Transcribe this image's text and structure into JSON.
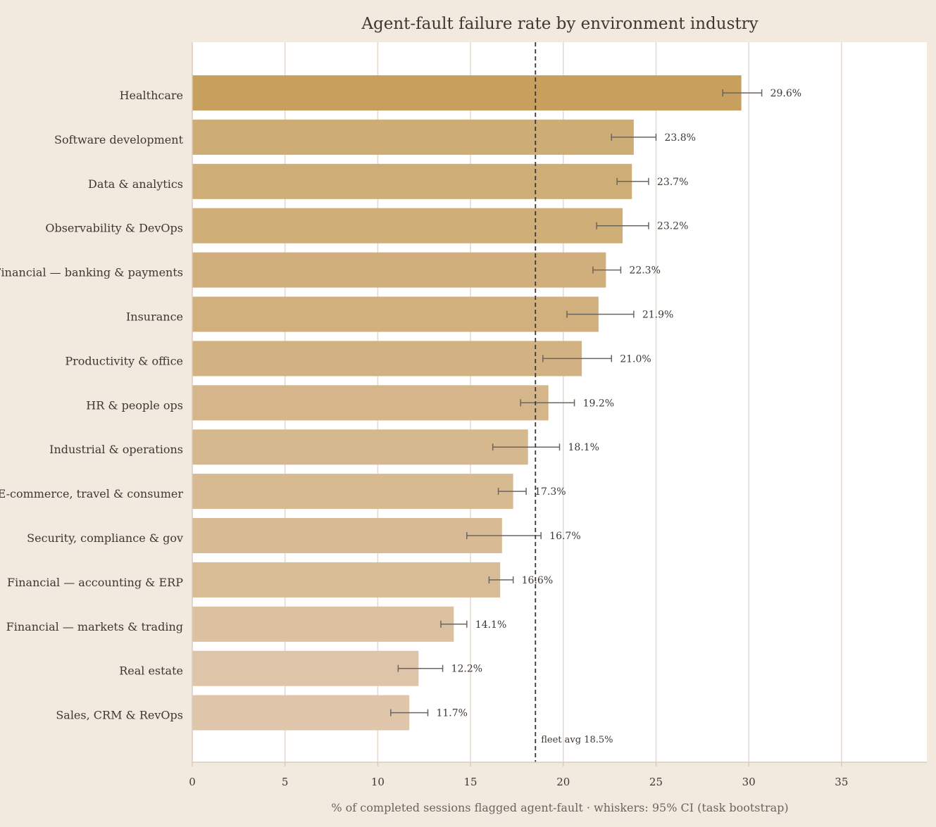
{
  "chart_data": {
    "type": "bar",
    "orientation": "horizontal",
    "title": "Agent-fault failure rate by environment industry",
    "xlabel": "% of completed sessions flagged agent-fault · whiskers: 95% CI (task bootstrap)",
    "ylabel": "",
    "xlim": [
      0,
      39.6
    ],
    "xticks": [
      0,
      5,
      10,
      15,
      20,
      25,
      30,
      35
    ],
    "grid": "vertical",
    "categories": [
      "Healthcare",
      "Software development",
      "Data & analytics",
      "Observability & DevOps",
      "Financial — banking & payments",
      "Insurance",
      "Productivity & office",
      "HR & people ops",
      "Industrial & operations",
      "E-commerce, travel & consumer",
      "Security, compliance & gov",
      "Financial — accounting & ERP",
      "Financial — markets & trading",
      "Real estate",
      "Sales, CRM & RevOps"
    ],
    "values": [
      29.6,
      23.8,
      23.7,
      23.2,
      22.3,
      21.9,
      21.0,
      19.2,
      18.1,
      17.3,
      16.7,
      16.6,
      14.1,
      12.2,
      11.7
    ],
    "ci_low": [
      28.6,
      22.6,
      22.9,
      21.8,
      21.6,
      20.2,
      18.9,
      17.7,
      16.2,
      16.5,
      14.8,
      16.0,
      13.4,
      11.1,
      10.7
    ],
    "ci_high": [
      30.7,
      25.0,
      24.6,
      24.6,
      23.1,
      23.8,
      22.6,
      20.6,
      19.8,
      18.0,
      18.8,
      17.3,
      14.8,
      13.5,
      12.7
    ],
    "value_labels": [
      "29.6%",
      "23.8%",
      "23.7%",
      "23.2%",
      "22.3%",
      "21.9%",
      "21.0%",
      "19.2%",
      "18.1%",
      "17.3%",
      "16.7%",
      "16.6%",
      "14.1%",
      "12.2%",
      "11.7%"
    ],
    "reference_line": {
      "value": 18.5,
      "label": "fleet avg 18.5%",
      "style": "dashed"
    },
    "colors": {
      "page_bg": "#f2e9df",
      "plot_bg": "#ffffff",
      "grid": "#e3d8cd",
      "axis": "#d9cbbd",
      "bar_highest": "#c6a05c",
      "bar_lowest": "#dfc6ab",
      "whisker": "#6b6560",
      "reference": "#3d3833",
      "text": "#3d3833"
    }
  }
}
